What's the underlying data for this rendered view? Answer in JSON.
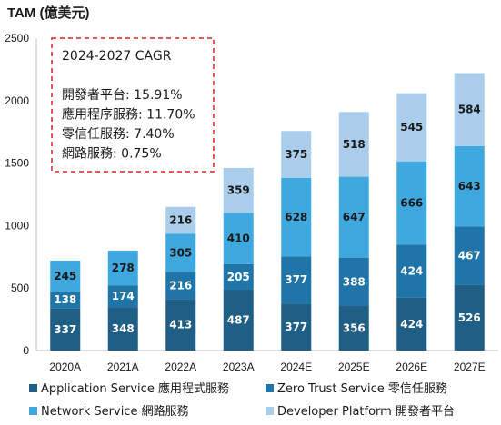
{
  "chart_data": {
    "type": "bar",
    "stacked": true,
    "title": "TAM (億美元)",
    "categories": [
      "2020A",
      "2021A",
      "2022A",
      "2023A",
      "2024E",
      "2025E",
      "2026E",
      "2027E"
    ],
    "series": [
      {
        "name": "Application Service 應用程式服務",
        "color": "#1f5f86",
        "label_color": "#ffffff",
        "values": [
          337,
          348,
          413,
          487,
          377,
          356,
          424,
          526
        ]
      },
      {
        "name": "Zero Trust Service 零信任服務",
        "color": "#1f74a8",
        "label_color": "#ffffff",
        "values": [
          138,
          174,
          216,
          205,
          377,
          388,
          424,
          467
        ]
      },
      {
        "name": "Network Service 網路服務",
        "color": "#3fa9df",
        "label_color": "#1a1a1a",
        "values": [
          245,
          278,
          305,
          410,
          628,
          647,
          666,
          643
        ]
      },
      {
        "name": "Developer Platform 開發者平台",
        "color": "#a9cdea",
        "label_color": "#1a1a1a",
        "values": [
          0,
          0,
          216,
          359,
          375,
          518,
          545,
          584
        ]
      }
    ],
    "ylim": [
      0,
      2500
    ],
    "yticks": [
      "0",
      "500",
      "1000",
      "1500",
      "2000",
      "2500"
    ],
    "grid": false,
    "legend_position": "bottom",
    "annotation": {
      "title": "2024-2027 CAGR",
      "lines": [
        "開發者平台: 15.91%",
        "應用程序服務: 11.70%",
        "零信任服務: 7.40%",
        "網路服務: 0.75%"
      ],
      "border_color": "#e02020"
    }
  }
}
